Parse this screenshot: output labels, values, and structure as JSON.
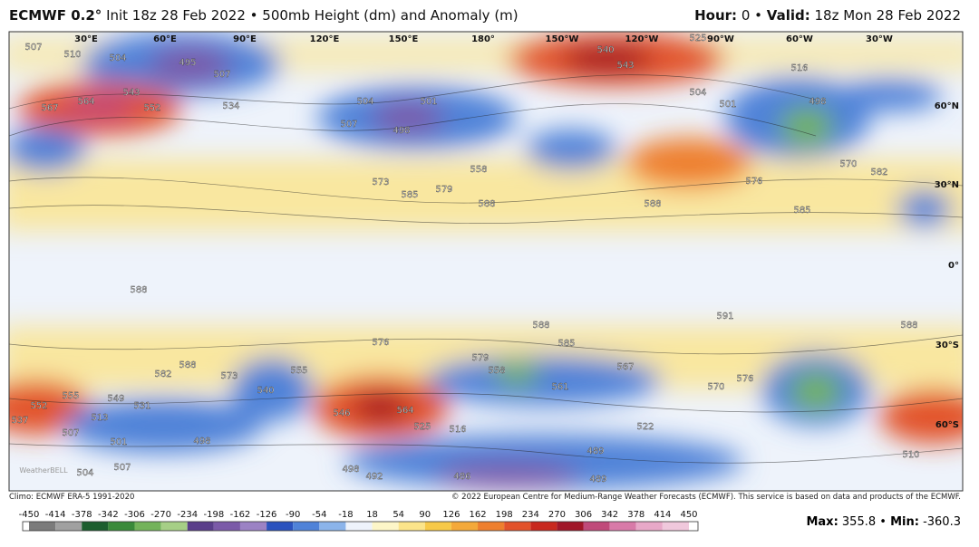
{
  "header": {
    "model": "ECMWF 0.2°",
    "init": "Init 18z 28 Feb 2022 • 500mb Height (dm) and Anomaly (m)",
    "hour_label": "Hour:",
    "hour": "0 •",
    "valid_label": "Valid:",
    "valid": "18z Mon 28 Feb 2022"
  },
  "map": {
    "lon_labels": [
      "30°E",
      "60°E",
      "90°E",
      "120°E",
      "150°E",
      "180°",
      "150°W",
      "120°W",
      "90°W",
      "60°W",
      "30°W"
    ],
    "lat_labels": [
      "60°N",
      "30°N",
      "0°",
      "30°S",
      "60°S"
    ],
    "contour_labels": [
      "507",
      "510",
      "504",
      "495",
      "507",
      "567",
      "564",
      "543",
      "552",
      "534",
      "504",
      "507",
      "498",
      "501",
      "558",
      "573",
      "585",
      "579",
      "588",
      "540",
      "543",
      "525",
      "516",
      "504",
      "501",
      "498",
      "570",
      "582",
      "576",
      "588",
      "585",
      "588",
      "591",
      "588",
      "588",
      "585",
      "588",
      "582",
      "573",
      "540",
      "555",
      "576",
      "579",
      "558",
      "561",
      "567",
      "570",
      "576",
      "552",
      "537",
      "555",
      "549",
      "531",
      "546",
      "564",
      "513",
      "507",
      "501",
      "498",
      "525",
      "516",
      "522",
      "489",
      "486",
      "489",
      "492",
      "498",
      "504",
      "507",
      "510"
    ],
    "watermark": "WeatherBELL"
  },
  "footer": {
    "climo": "Climo: ECMWF ERA-5 1991-2020",
    "credit": "© 2022 European Centre for Medium-Range Weather Forecasts (ECMWF). This service is based on data and products of the ECMWF.",
    "max_label": "Max:",
    "max": "355.8 •",
    "min_label": "Min:",
    "min": "-360.3"
  },
  "colorbar": {
    "ticks": [
      -450,
      -414,
      -378,
      -342,
      -306,
      -270,
      -234,
      -198,
      -162,
      -126,
      -90,
      -54,
      -18,
      18,
      54,
      90,
      126,
      162,
      198,
      234,
      270,
      306,
      342,
      378,
      414,
      450
    ],
    "colors": [
      "#7b7b7b",
      "#a0a0a0",
      "#1c5e2e",
      "#3a8a3a",
      "#73b35a",
      "#a6cf86",
      "#5a3e8a",
      "#7b5aa8",
      "#9b82c4",
      "#2a52be",
      "#4f82d8",
      "#8bb4ea",
      "#eef3fb",
      "#fdf6c8",
      "#fbe48a",
      "#f7c948",
      "#f4a93a",
      "#ee7f2e",
      "#e2522a",
      "#c8281e",
      "#a01628",
      "#c04a7a",
      "#d87aa8",
      "#e8a8c8",
      "#f0c8dc"
    ]
  }
}
